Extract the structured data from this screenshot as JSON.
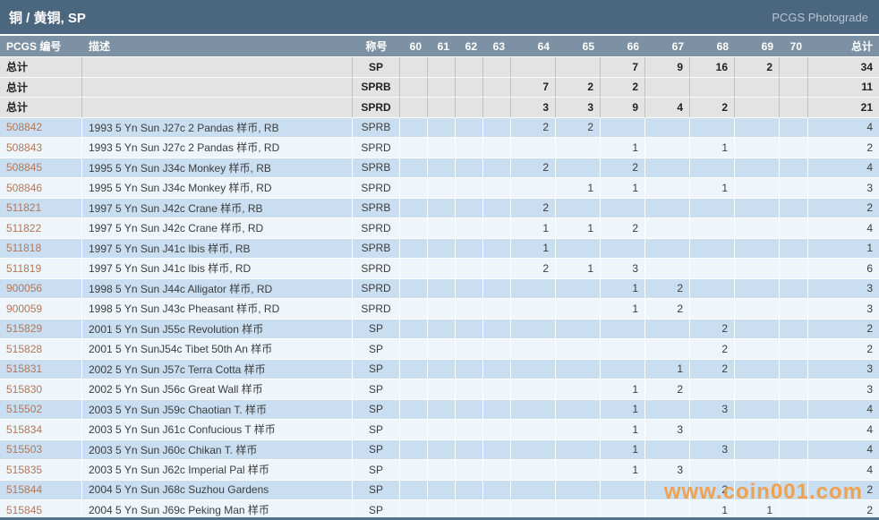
{
  "title_bar": {
    "title": "铜 / 黄铜, SP",
    "brand": "PCGS Photograde"
  },
  "table": {
    "headers": {
      "number": "PCGS 编号",
      "desc": "描述",
      "designation": "称号",
      "total": "总计"
    },
    "grade_keys": [
      "60",
      "61",
      "62",
      "63",
      "64",
      "65",
      "66",
      "67",
      "68",
      "69",
      "70"
    ],
    "summary_rows": [
      {
        "label": "总计",
        "designation": "SP",
        "grades": {
          "66": "7",
          "67": "9",
          "68": "16",
          "69": "2"
        },
        "total": "34"
      },
      {
        "label": "总计",
        "designation": "SPRB",
        "grades": {
          "64": "7",
          "65": "2",
          "66": "2"
        },
        "total": "11"
      },
      {
        "label": "总计",
        "designation": "SPRD",
        "grades": {
          "64": "3",
          "65": "3",
          "66": "9",
          "67": "4",
          "68": "2"
        },
        "total": "21"
      }
    ],
    "rows": [
      {
        "number": "508842",
        "desc": "1993 5 Yn Sun J27c 2 Pandas 样币, RB",
        "designation": "SPRB",
        "grades": {
          "64": "2",
          "65": "2"
        },
        "total": "4"
      },
      {
        "number": "508843",
        "desc": "1993 5 Yn Sun J27c 2 Pandas 样币, RD",
        "designation": "SPRD",
        "grades": {
          "66": "1",
          "68": "1"
        },
        "total": "2"
      },
      {
        "number": "508845",
        "desc": "1995 5 Yn Sun J34c Monkey 样币, RB",
        "designation": "SPRB",
        "grades": {
          "64": "2",
          "66": "2"
        },
        "total": "4"
      },
      {
        "number": "508846",
        "desc": "1995 5 Yn Sun J34c Monkey 样币, RD",
        "designation": "SPRD",
        "grades": {
          "65": "1",
          "66": "1",
          "68": "1"
        },
        "total": "3"
      },
      {
        "number": "511821",
        "desc": "1997 5 Yn Sun J42c Crane 样币, RB",
        "designation": "SPRB",
        "grades": {
          "64": "2"
        },
        "total": "2"
      },
      {
        "number": "511822",
        "desc": "1997 5 Yn Sun J42c Crane 样币, RD",
        "designation": "SPRD",
        "grades": {
          "64": "1",
          "65": "1",
          "66": "2"
        },
        "total": "4"
      },
      {
        "number": "511818",
        "desc": "1997 5 Yn Sun J41c Ibis 样币, RB",
        "designation": "SPRB",
        "grades": {
          "64": "1"
        },
        "total": "1"
      },
      {
        "number": "511819",
        "desc": "1997 5 Yn Sun J41c Ibis 样币, RD",
        "designation": "SPRD",
        "grades": {
          "64": "2",
          "65": "1",
          "66": "3"
        },
        "total": "6"
      },
      {
        "number": "900056",
        "desc": "1998 5 Yn Sun J44c Alligator 样币, RD",
        "designation": "SPRD",
        "grades": {
          "66": "1",
          "67": "2"
        },
        "total": "3"
      },
      {
        "number": "900059",
        "desc": "1998 5 Yn Sun J43c Pheasant 样币, RD",
        "designation": "SPRD",
        "grades": {
          "66": "1",
          "67": "2"
        },
        "total": "3"
      },
      {
        "number": "515829",
        "desc": "2001 5 Yn Sun J55c Revolution 样币",
        "designation": "SP",
        "grades": {
          "68": "2"
        },
        "total": "2"
      },
      {
        "number": "515828",
        "desc": "2001 5 Yn SunJ54c Tibet 50th An 样币",
        "designation": "SP",
        "grades": {
          "68": "2"
        },
        "total": "2"
      },
      {
        "number": "515831",
        "desc": "2002 5 Yn Sun J57c Terra Cotta 样币",
        "designation": "SP",
        "grades": {
          "67": "1",
          "68": "2"
        },
        "total": "3"
      },
      {
        "number": "515830",
        "desc": "2002 5 Yn Sun J56c Great Wall 样币",
        "designation": "SP",
        "grades": {
          "66": "1",
          "67": "2"
        },
        "total": "3"
      },
      {
        "number": "515502",
        "desc": "2003 5 Yn Sun J59c Chaotian T. 样币",
        "designation": "SP",
        "grades": {
          "66": "1",
          "68": "3"
        },
        "total": "4"
      },
      {
        "number": "515834",
        "desc": "2003 5 Yn Sun J61c Confucious T 样币",
        "designation": "SP",
        "grades": {
          "66": "1",
          "67": "3"
        },
        "total": "4"
      },
      {
        "number": "515503",
        "desc": "2003 5 Yn Sun J60c Chikan T. 样币",
        "designation": "SP",
        "grades": {
          "66": "1",
          "68": "3"
        },
        "total": "4"
      },
      {
        "number": "515835",
        "desc": "2003 5 Yn Sun J62c Imperial Pal 样币",
        "designation": "SP",
        "grades": {
          "66": "1",
          "67": "3"
        },
        "total": "4"
      },
      {
        "number": "515844",
        "desc": "2004 5 Yn Sun J68c Suzhou Gardens",
        "designation": "SP",
        "grades": {
          "68": "2"
        },
        "total": "2"
      },
      {
        "number": "515845",
        "desc": "2004 5 Yn Sun J69c Peking Man 样币",
        "designation": "SP",
        "grades": {
          "68": "1",
          "69": "1"
        },
        "total": "2"
      }
    ]
  },
  "watermark": "www.coin001.com",
  "colors": {
    "title_bar_bg": "#4b667f",
    "header_bg": "#7d91a4",
    "summary_row_bg": "#e3e3e3",
    "row_blue": "#c9def1",
    "row_light": "#eef5fb",
    "pcgs_number_link": "#b1775a",
    "watermark": "#f2993a",
    "bottom_line": "#54738e"
  }
}
